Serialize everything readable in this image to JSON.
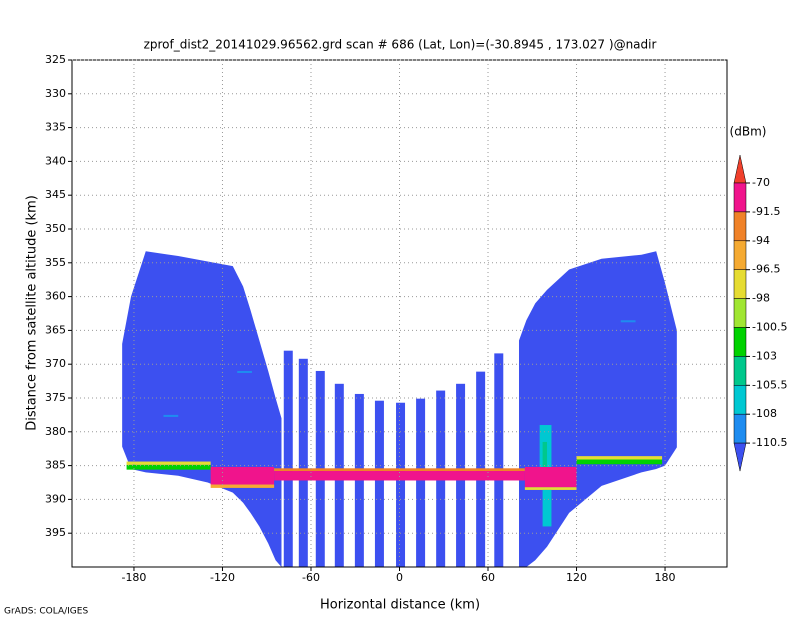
{
  "chart_data": {
    "type": "profile",
    "title": "zprof_dist2_20141029.96562.grd  scan # 686  (Lat, Lon)=(-30.8945 , 173.027 )@nadir",
    "x_label": "Horizontal distance (km)",
    "y_label": "Distance from satellite altitude (km)",
    "footer": "GrADS: COLA/IGES",
    "xlim": [
      -222,
      222
    ],
    "ylim": [
      325,
      400
    ],
    "xticks": [
      -180,
      -120,
      -60,
      0,
      60,
      120,
      180
    ],
    "yticks": [
      325,
      330,
      335,
      340,
      345,
      350,
      355,
      360,
      365,
      370,
      375,
      380,
      385,
      390,
      395
    ],
    "grid": true,
    "y_reversed": true,
    "colorbar": {
      "unit": "(dBm)",
      "levels": [
        -70,
        -91.5,
        -94,
        -96.5,
        -98,
        -100.5,
        -103,
        -105.5,
        -108,
        -110.5
      ],
      "colors": [
        "#f0402c",
        "#f0148c",
        "#f08228",
        "#f5aa32",
        "#e6dc32",
        "#a0e632",
        "#00d200",
        "#00c88c",
        "#00c8d2",
        "#1e8cf0",
        "#3c50f0"
      ]
    },
    "field_value": -112,
    "swaths": [
      {
        "x": [
          -188,
          -182,
          -172,
          -150,
          -130,
          -113,
          -106,
          -101,
          -95,
          -89,
          -84,
          -80
        ],
        "top": [
          367,
          360,
          353.3,
          354,
          354.8,
          355.5,
          358.5,
          362,
          366.5,
          371,
          375,
          378
        ],
        "bottom": [
          382.2,
          385.5,
          386,
          386.5,
          387.5,
          389,
          390.5,
          392,
          394,
          396.5,
          399,
          400
        ]
      },
      {
        "x": [
          81,
          86,
          92,
          100,
          115,
          137,
          164,
          174,
          180,
          188
        ],
        "top": [
          366.5,
          363.5,
          361,
          359,
          356,
          354.4,
          353.8,
          353.3,
          358,
          365
        ],
        "bottom": [
          400,
          400,
          399,
          397,
          392,
          388,
          386,
          385.5,
          385,
          382.3
        ]
      }
    ],
    "columns": [
      {
        "x": -75.4,
        "top": 368,
        "bottom": 400
      },
      {
        "x": -65.2,
        "top": 369.2,
        "bottom": 400
      },
      {
        "x": -53.7,
        "top": 371,
        "bottom": 400
      },
      {
        "x": -40.8,
        "top": 372.9,
        "bottom": 400
      },
      {
        "x": -27.2,
        "top": 374.4,
        "bottom": 400
      },
      {
        "x": -13.6,
        "top": 375.4,
        "bottom": 400
      },
      {
        "x": 0.7,
        "top": 375.7,
        "bottom": 400
      },
      {
        "x": 14.3,
        "top": 375.1,
        "bottom": 400
      },
      {
        "x": 27.9,
        "top": 373.9,
        "bottom": 400
      },
      {
        "x": 41.4,
        "top": 372.9,
        "bottom": 400
      },
      {
        "x": 55,
        "top": 371.1,
        "bottom": 400
      },
      {
        "x": 67.3,
        "top": 368.4,
        "bottom": 400
      }
    ],
    "echoes": [
      {
        "x0": -185,
        "x1": -128,
        "y0": 384.4,
        "y1": 384.9,
        "value": -97
      },
      {
        "x0": -185,
        "x1": -128,
        "y0": 384.9,
        "y1": 385.6,
        "value": -102
      },
      {
        "x0": -128,
        "x1": -85,
        "y0": 385.2,
        "y1": 387.8,
        "value": -85
      },
      {
        "x0": -128,
        "x1": -85,
        "y0": 387.8,
        "y1": 388.3,
        "value": -95
      },
      {
        "x0": -85,
        "x1": 85,
        "y0": 385.8,
        "y1": 387.2,
        "value": -85
      },
      {
        "x0": -85,
        "x1": 85,
        "y0": 385.4,
        "y1": 385.8,
        "value": -93
      },
      {
        "x0": 85,
        "x1": 120,
        "y0": 385.2,
        "y1": 388.2,
        "value": -85
      },
      {
        "x0": 85,
        "x1": 120,
        "y0": 388.2,
        "y1": 388.6,
        "value": -97
      },
      {
        "x0": 120,
        "x1": 178,
        "y0": 383.6,
        "y1": 384.1,
        "value": -97
      },
      {
        "x0": 120,
        "x1": 178,
        "y0": 384.1,
        "y1": 384.8,
        "value": -102
      },
      {
        "x0": 95,
        "x1": 103,
        "y0": 379,
        "y1": 385.2,
        "value": -107
      },
      {
        "x0": 97,
        "x1": 100,
        "y0": 381.5,
        "y1": 385.2,
        "value": -104
      },
      {
        "x0": 97,
        "x1": 103,
        "y0": 388.6,
        "y1": 394,
        "value": -107
      },
      {
        "x0": -160,
        "x1": -150,
        "y0": 377.5,
        "y1": 377.8,
        "value": -109
      },
      {
        "x0": 150,
        "x1": 160,
        "y0": 363.5,
        "y1": 363.8,
        "value": -109
      },
      {
        "x0": -110,
        "x1": -100,
        "y0": 371,
        "y1": 371.3,
        "value": -109
      }
    ]
  }
}
